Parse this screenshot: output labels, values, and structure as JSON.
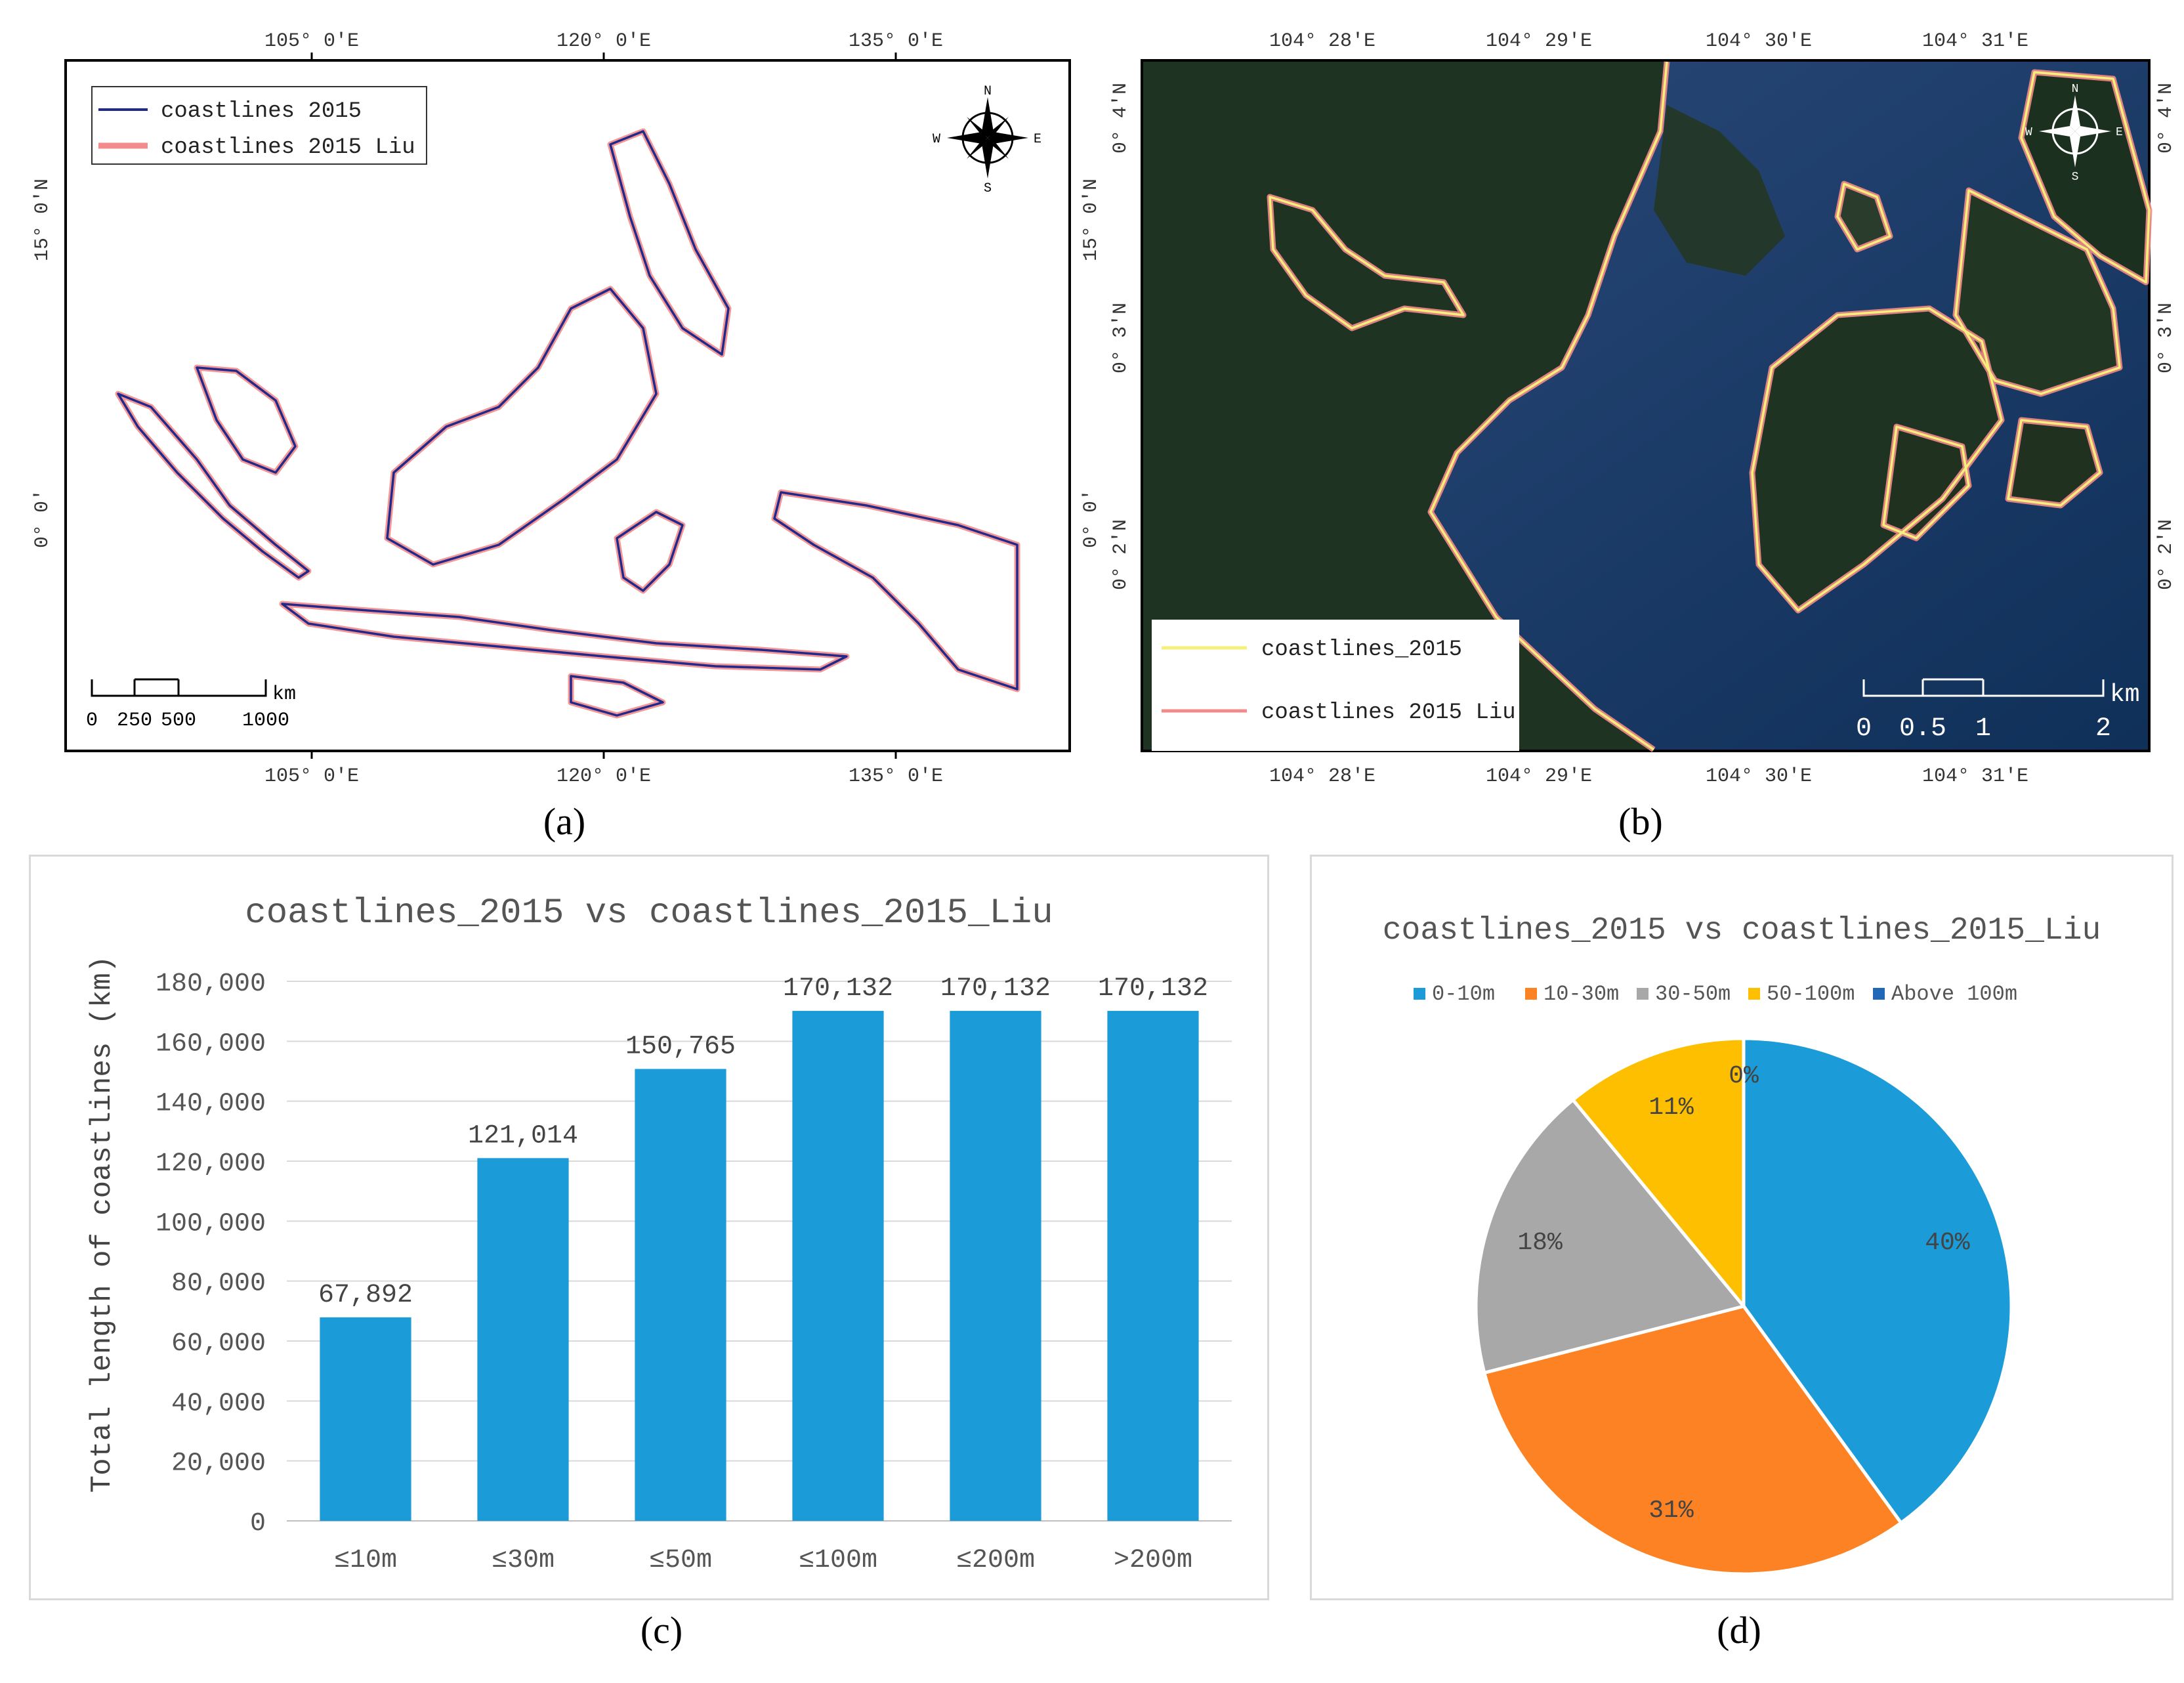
{
  "panels": {
    "a": {
      "letter": "(a)",
      "top_ticks": [
        "105° 0′E",
        "120° 0′E",
        "135° 0′E"
      ],
      "bottom_ticks": [
        "105° 0′E",
        "120° 0′E",
        "135° 0′E"
      ],
      "left_ticks": [
        "15° 0′N",
        "0° 0′"
      ],
      "right_ticks": [
        "15° 0′N",
        "0° 0′"
      ],
      "legend": [
        "coastlines 2015",
        "coastlines 2015 Liu"
      ],
      "legend_colors": [
        "#1f2a8c",
        "#f28b8b"
      ],
      "compass": {
        "n": "N",
        "s": "S",
        "e": "E",
        "w": "W"
      },
      "scale": {
        "unit": "km",
        "labels": [
          "0",
          "250",
          "500",
          "1000"
        ]
      }
    },
    "b": {
      "letter": "(b)",
      "top_ticks": [
        "104° 28′E",
        "104° 29′E",
        "104° 30′E",
        "104° 31′E"
      ],
      "bottom_ticks": [
        "104° 28′E",
        "104° 29′E",
        "104° 30′E",
        "104° 31′E"
      ],
      "left_ticks": [
        "0° 4′N",
        "0° 3′N",
        "0° 2′N"
      ],
      "right_ticks": [
        "0° 4′N",
        "0° 3′N",
        "0° 2′N"
      ],
      "legend": [
        "coastlines_2015",
        "coastlines 2015 Liu"
      ],
      "legend_colors": [
        "#f6f07a",
        "#f28b8b"
      ],
      "compass": {
        "n": "N",
        "s": "S",
        "e": "E",
        "w": "W"
      },
      "scale": {
        "unit": "km",
        "labels": [
          "0",
          "0.5",
          "1",
          "2"
        ]
      }
    },
    "c": {
      "letter": "(c)"
    },
    "d": {
      "letter": "(d)"
    }
  },
  "chart_data": [
    {
      "type": "bar",
      "title": "coastlines_2015 vs coastlines_2015_Liu",
      "xlabel": "",
      "ylabel": "Total length of coastlines (km)",
      "categories": [
        "≤10m",
        "≤30m",
        "≤50m",
        "≤100m",
        "≤200m",
        ">200m"
      ],
      "values": [
        67892,
        121014,
        150765,
        170132,
        170132,
        170132
      ],
      "value_labels": [
        "67,892",
        "121,014",
        "150,765",
        "170,132",
        "170,132",
        "170,132"
      ],
      "ylim": [
        0,
        180000
      ],
      "yticks": [
        "0",
        "20,000",
        "40,000",
        "60,000",
        "80,000",
        "100,000",
        "120,000",
        "140,000",
        "160,000",
        "180,000"
      ],
      "grid": true,
      "bar_color": "#1b9cd8"
    },
    {
      "type": "pie",
      "title": "coastlines_2015 vs coastlines_2015_Liu",
      "legend_placement": "top",
      "labels": [
        "0-10m",
        "10-30m",
        "30-50m",
        "50-100m",
        "Above 100m"
      ],
      "values": [
        40,
        31,
        18,
        11,
        0
      ],
      "value_labels": [
        "40%",
        "31%",
        "18%",
        "11%",
        "0%"
      ],
      "colors": [
        "#1b9cd8",
        "#fd8224",
        "#a8a8a8",
        "#fdbf00",
        "#2168b8"
      ]
    }
  ]
}
